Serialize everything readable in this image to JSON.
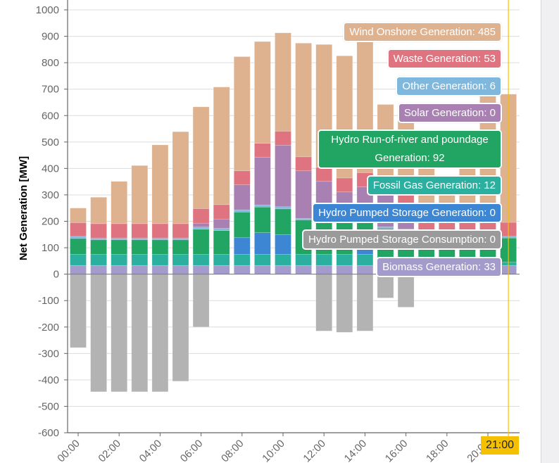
{
  "chart_data": {
    "type": "bar",
    "stacked": true,
    "ylabel": "Net Generation [MW]",
    "xlabel": "",
    "ylim": [
      -600,
      1000
    ],
    "yticks": [
      1000,
      900,
      800,
      700,
      600,
      500,
      400,
      300,
      200,
      100,
      0,
      -100,
      -200,
      -300,
      -400,
      -500,
      -600
    ],
    "grid": true,
    "categories": [
      "00:00",
      "01:00",
      "02:00",
      "03:00",
      "04:00",
      "05:00",
      "06:00",
      "07:00",
      "08:00",
      "09:00",
      "10:00",
      "11:00",
      "12:00",
      "13:00",
      "14:00",
      "15:00",
      "16:00",
      "17:00",
      "18:00",
      "19:00",
      "20:00",
      "21:00"
    ],
    "xtick_labels": [
      "00:00",
      "02:00",
      "04:00",
      "06:00",
      "08:00",
      "10:00",
      "12:00",
      "14:00",
      "16:00",
      "18:00",
      "20:00"
    ],
    "series": [
      {
        "name": "Biomass Generation",
        "color": "#a29bcc",
        "values": [
          33,
          33,
          33,
          33,
          33,
          33,
          33,
          33,
          33,
          33,
          33,
          33,
          33,
          33,
          33,
          33,
          33,
          33,
          33,
          33,
          33,
          33
        ]
      },
      {
        "name": "Fossil Gas Generation",
        "color": "#2bb0a0",
        "values": [
          42,
          42,
          42,
          42,
          42,
          42,
          42,
          42,
          42,
          42,
          42,
          42,
          42,
          42,
          42,
          20,
          12,
          12,
          12,
          12,
          12,
          12
        ]
      },
      {
        "name": "Hydro Pumped Storage Generation",
        "color": "#3d86d4",
        "values": [
          0,
          0,
          0,
          0,
          0,
          0,
          0,
          0,
          63,
          82,
          75,
          0,
          0,
          0,
          25,
          0,
          10,
          0,
          0,
          0,
          0,
          0
        ]
      },
      {
        "name": "Hydro Run-of-river and poundage Generation",
        "color": "#22a463",
        "values": [
          60,
          55,
          55,
          55,
          55,
          55,
          95,
          90,
          97,
          97,
          97,
          130,
          120,
          120,
          95,
          120,
          110,
          95,
          95,
          95,
          95,
          92
        ]
      },
      {
        "name": "Other Generation",
        "color": "#7fb8dc",
        "values": [
          8,
          6,
          6,
          6,
          6,
          6,
          8,
          8,
          8,
          8,
          8,
          6,
          6,
          6,
          6,
          6,
          6,
          6,
          6,
          6,
          6,
          6
        ]
      },
      {
        "name": "Solar Generation",
        "color": "#a880b2",
        "values": [
          0,
          0,
          0,
          0,
          0,
          0,
          15,
          35,
          95,
          180,
          233,
          180,
          150,
          110,
          130,
          120,
          90,
          0,
          0,
          0,
          0,
          0
        ]
      },
      {
        "name": "Waste Generation",
        "color": "#df7480",
        "values": [
          52,
          55,
          55,
          55,
          55,
          55,
          55,
          55,
          53,
          53,
          53,
          53,
          53,
          53,
          53,
          53,
          53,
          53,
          53,
          53,
          53,
          53
        ]
      },
      {
        "name": "Wind Onshore Generation",
        "color": "#deb18f",
        "values": [
          55,
          100,
          160,
          220,
          298,
          348,
          385,
          445,
          432,
          385,
          372,
          430,
          465,
          462,
          530,
          290,
          280,
          220,
          150,
          235,
          495,
          485
        ]
      },
      {
        "name": "Hydro Pumped Storage Consumption",
        "color": "#b3b3b3",
        "values": [
          -278,
          -445,
          -445,
          -445,
          -445,
          -405,
          -200,
          0,
          0,
          0,
          0,
          0,
          -215,
          -220,
          -215,
          -90,
          -125,
          0,
          0,
          0,
          0,
          0
        ]
      }
    ],
    "hover_index": 21,
    "tooltips": [
      {
        "label": "Wind Onshore Generation: 485",
        "color": "#deb18f"
      },
      {
        "label": "Waste Generation: 53",
        "color": "#df7480"
      },
      {
        "label": "Other Generation: 6",
        "color": "#7fb8dc"
      },
      {
        "label": "Solar Generation: 0",
        "color": "#a880b2"
      },
      {
        "label": "Hydro Run-of-river and poundage Generation: 92",
        "color": "#22a463"
      },
      {
        "label": "Fossil Gas Generation: 12",
        "color": "#2bb0a0"
      },
      {
        "label": "Hydro Pumped Storage Generation: 0",
        "color": "#3d86d4"
      },
      {
        "label": "Hydro Pumped Storage Consumption: 0",
        "color": "#9a9a9a"
      },
      {
        "label": "Biomass Generation: 33",
        "color": "#a29bcc"
      }
    ],
    "crosshair_label": "21:00",
    "crosshair_color": "#f5c000"
  }
}
